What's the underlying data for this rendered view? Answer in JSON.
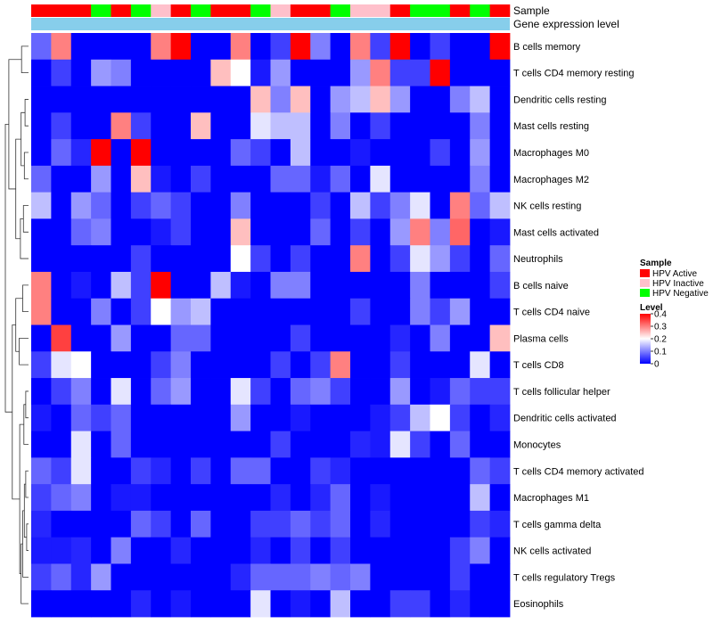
{
  "chart_data": {
    "type": "heatmap",
    "annotation_rows": [
      "Sample",
      "Gene expression level"
    ],
    "sample_groups": [
      "HPV Active",
      "HPV Active",
      "HPV Active",
      "HPV Negative",
      "HPV Active",
      "HPV Negative",
      "HPV Inactive",
      "HPV Active",
      "HPV Negative",
      "HPV Active",
      "HPV Active",
      "HPV Negative",
      "HPV Inactive",
      "HPV Active",
      "HPV Active",
      "HPV Negative",
      "HPV Inactive",
      "HPV Inactive",
      "HPV Active",
      "HPV Negative",
      "HPV Negative",
      "HPV Active",
      "HPV Negative",
      "HPV Active"
    ],
    "rows": [
      "B cells memory",
      "T cells CD4 memory resting",
      "Dendritic cells resting",
      "Mast cells resting",
      "Macrophages M0",
      "Macrophages M2",
      "NK cells resting",
      "Mast cells activated",
      "Neutrophils",
      "B cells naive",
      "T cells CD4 naive",
      "Plasma cells",
      "T cells CD8",
      "T cells follicular helper",
      "Dendritic cells activated",
      "Monocytes",
      "T cells CD4 memory activated",
      "Macrophages M1",
      "T cells gamma delta",
      "NK cells activated",
      "T cells regulatory  Tregs",
      "Eosinophils"
    ],
    "values": [
      [
        0.08,
        0.3,
        0,
        0,
        0,
        0,
        0.3,
        0.4,
        0,
        0,
        0.3,
        0,
        0.05,
        0.4,
        0.1,
        0,
        0.3,
        0.05,
        0.4,
        0,
        0.05,
        0,
        0,
        0.4
      ],
      [
        0,
        0.05,
        0,
        0.12,
        0.1,
        0,
        0,
        0,
        0,
        0.25,
        0.2,
        0.02,
        0.12,
        0,
        0,
        0,
        0.12,
        0.3,
        0.05,
        0.05,
        0.4,
        0,
        0,
        0
      ],
      [
        0,
        0,
        0,
        0,
        0,
        0,
        0,
        0,
        0,
        0,
        0,
        0.25,
        0.1,
        0.25,
        0,
        0.12,
        0.15,
        0.25,
        0.12,
        0,
        0,
        0.1,
        0.15,
        0
      ],
      [
        0,
        0.05,
        0,
        0,
        0.3,
        0.05,
        0,
        0,
        0.25,
        0,
        0,
        0.18,
        0.15,
        0.15,
        0,
        0.1,
        0,
        0.05,
        0,
        0,
        0,
        0,
        0.1,
        0
      ],
      [
        0,
        0.08,
        0.03,
        0.4,
        0,
        0.4,
        0,
        0,
        0,
        0,
        0.08,
        0.05,
        0,
        0.15,
        0,
        0,
        0.02,
        0,
        0,
        0,
        0.05,
        0,
        0.12,
        0
      ],
      [
        0.08,
        0,
        0,
        0.12,
        0,
        0.25,
        0.02,
        0,
        0.05,
        0,
        0,
        0,
        0.08,
        0.08,
        0.02,
        0.08,
        0,
        0.18,
        0,
        0,
        0,
        0,
        0.1,
        0
      ],
      [
        0.15,
        0,
        0.12,
        0.08,
        0,
        0.05,
        0.08,
        0.05,
        0,
        0,
        0.1,
        0,
        0,
        0,
        0.05,
        0,
        0.15,
        0.05,
        0.1,
        0.18,
        0,
        0.3,
        0.08,
        0.15
      ],
      [
        0,
        0,
        0.08,
        0.1,
        0,
        0,
        0.02,
        0.05,
        0,
        0,
        0.25,
        0,
        0,
        0,
        0.08,
        0,
        0.05,
        0,
        0.12,
        0.3,
        0.1,
        0.32,
        0,
        0.02
      ],
      [
        0,
        0,
        0,
        0,
        0,
        0.05,
        0,
        0,
        0,
        0,
        0.2,
        0.05,
        0,
        0.05,
        0,
        0,
        0.3,
        0,
        0.05,
        0.18,
        0.12,
        0.05,
        0,
        0.08
      ],
      [
        0.3,
        0,
        0.02,
        0,
        0.15,
        0.05,
        0.4,
        0,
        0,
        0.15,
        0.02,
        0,
        0.1,
        0.1,
        0,
        0,
        0,
        0,
        0,
        0.1,
        0,
        0,
        0,
        0.05
      ],
      [
        0.3,
        0,
        0,
        0.1,
        0,
        0.05,
        0.2,
        0.12,
        0.15,
        0,
        0,
        0,
        0,
        0,
        0,
        0,
        0.05,
        0,
        0,
        0.1,
        0.05,
        0.12,
        0,
        0
      ],
      [
        0,
        0.35,
        0,
        0,
        0.12,
        0,
        0,
        0.08,
        0.08,
        0,
        0,
        0,
        0,
        0.05,
        0,
        0,
        0,
        0,
        0.03,
        0,
        0.1,
        0,
        0,
        0.25
      ],
      [
        0.05,
        0.18,
        0.2,
        0,
        0,
        0,
        0.05,
        0.1,
        0,
        0,
        0,
        0,
        0.05,
        0,
        0.05,
        0.3,
        0,
        0,
        0.05,
        0,
        0,
        0,
        0.18,
        0
      ],
      [
        0,
        0.05,
        0.1,
        0,
        0.18,
        0,
        0.08,
        0.12,
        0,
        0,
        0.18,
        0.05,
        0,
        0.08,
        0.1,
        0.05,
        0,
        0,
        0.12,
        0,
        0.02,
        0.08,
        0.05,
        0.05
      ],
      [
        0.02,
        0,
        0.08,
        0.05,
        0.08,
        0,
        0,
        0,
        0,
        0,
        0.12,
        0,
        0,
        0.02,
        0,
        0,
        0,
        0.02,
        0.05,
        0.15,
        0.2,
        0.05,
        0,
        0.03
      ],
      [
        0,
        0,
        0.18,
        0,
        0.08,
        0,
        0,
        0,
        0,
        0,
        0,
        0,
        0.05,
        0,
        0,
        0,
        0.03,
        0.02,
        0.18,
        0.05,
        0,
        0.08,
        0,
        0
      ],
      [
        0.08,
        0.05,
        0.18,
        0,
        0,
        0.05,
        0.03,
        0,
        0.05,
        0,
        0.08,
        0.08,
        0,
        0,
        0.05,
        0.03,
        0,
        0,
        0,
        0,
        0,
        0,
        0.08,
        0.05
      ],
      [
        0.05,
        0.08,
        0.1,
        0,
        0.02,
        0.02,
        0,
        0,
        0,
        0,
        0,
        0,
        0.03,
        0,
        0.03,
        0.08,
        0,
        0.02,
        0,
        0,
        0,
        0,
        0.15,
        0
      ],
      [
        0.03,
        0,
        0,
        0,
        0,
        0.08,
        0.05,
        0,
        0.08,
        0,
        0,
        0.05,
        0.05,
        0.08,
        0.05,
        0.08,
        0,
        0.03,
        0,
        0,
        0,
        0,
        0.05,
        0.03
      ],
      [
        0.02,
        0.02,
        0.03,
        0,
        0.1,
        0,
        0,
        0.03,
        0,
        0,
        0,
        0.03,
        0,
        0.05,
        0,
        0.05,
        0,
        0,
        0,
        0,
        0,
        0.05,
        0.1,
        0
      ],
      [
        0.05,
        0.08,
        0.03,
        0.12,
        0,
        0,
        0,
        0,
        0,
        0,
        0.03,
        0.08,
        0.08,
        0.08,
        0.1,
        0.08,
        0.1,
        0,
        0,
        0,
        0,
        0.05,
        0,
        0
      ],
      [
        0,
        0,
        0,
        0,
        0,
        0.03,
        0,
        0.02,
        0,
        0,
        0,
        0.18,
        0,
        0.02,
        0,
        0.15,
        0,
        0,
        0.05,
        0.05,
        0,
        0.03,
        0,
        0
      ]
    ],
    "legend_sample": {
      "title": "Sample",
      "entries": [
        {
          "label": "HPV Active",
          "color": "#ff0000"
        },
        {
          "label": "HPV Inactive",
          "color": "#ffc0cb"
        },
        {
          "label": "HPV Negative",
          "color": "#00ff00"
        }
      ]
    },
    "legend_level": {
      "title": "Level",
      "ticks": [
        "0.4",
        "0.3",
        "0.2",
        "0.1",
        "0"
      ],
      "tick_values": [
        0.4,
        0.3,
        0.2,
        0.1,
        0
      ],
      "range": [
        0,
        0.4
      ],
      "colors": {
        "low": "#0000ff",
        "mid": "#ffffff",
        "high": "#ff0000"
      }
    },
    "gene_expression_color": "#87ceeb"
  }
}
